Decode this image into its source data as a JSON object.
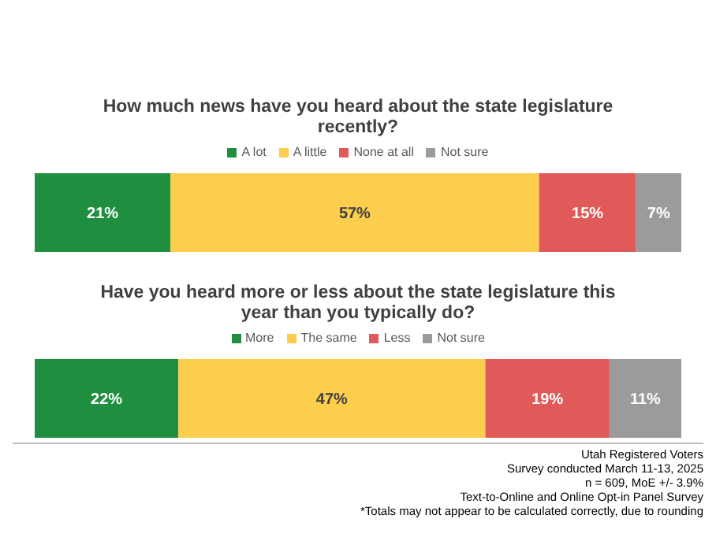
{
  "chart_data": [
    {
      "type": "bar",
      "orientation": "horizontal",
      "stacked": true,
      "title": "How much news have you heard about the state legislature recently?",
      "categories": [
        null
      ],
      "legend": "top",
      "tick_labels": false,
      "series": [
        {
          "name": "A lot",
          "color": "#1f8f3f",
          "values": [
            21
          ],
          "value_labels": [
            "21%"
          ]
        },
        {
          "name": "A little",
          "color": "#fdcd4e",
          "values": [
            57
          ],
          "value_labels": [
            "57%"
          ]
        },
        {
          "name": "None at all",
          "color": "#e05a5a",
          "values": [
            15
          ],
          "value_labels": [
            "15%"
          ]
        },
        {
          "name": "Not sure",
          "color": "#9b9b9b",
          "values": [
            7
          ],
          "value_labels": [
            "7%"
          ]
        }
      ]
    },
    {
      "type": "bar",
      "orientation": "horizontal",
      "stacked": true,
      "title": "Have you heard more or less about the state legislature this year than you typically do?",
      "categories": [
        null
      ],
      "legend": "top",
      "tick_labels": false,
      "series": [
        {
          "name": "More",
          "color": "#1f8f3f",
          "values": [
            22
          ],
          "value_labels": [
            "22%"
          ]
        },
        {
          "name": "The same",
          "color": "#fdcd4e",
          "values": [
            47
          ],
          "value_labels": [
            "47%"
          ]
        },
        {
          "name": "Less",
          "color": "#e05a5a",
          "values": [
            19
          ],
          "value_labels": [
            "19%"
          ]
        },
        {
          "name": "Not sure",
          "color": "#9b9b9b",
          "values": [
            11
          ],
          "value_labels": [
            "11%"
          ]
        }
      ],
      "annotations": [
        "Utah Registered Voters",
        "Survey conducted March 11-13, 2025",
        "n = 609, MoE +/- 3.9%",
        "Text-to-Online and Online Opt-in Panel Survey",
        "*Totals may not appear to be calculated correctly, due to rounding"
      ]
    }
  ]
}
